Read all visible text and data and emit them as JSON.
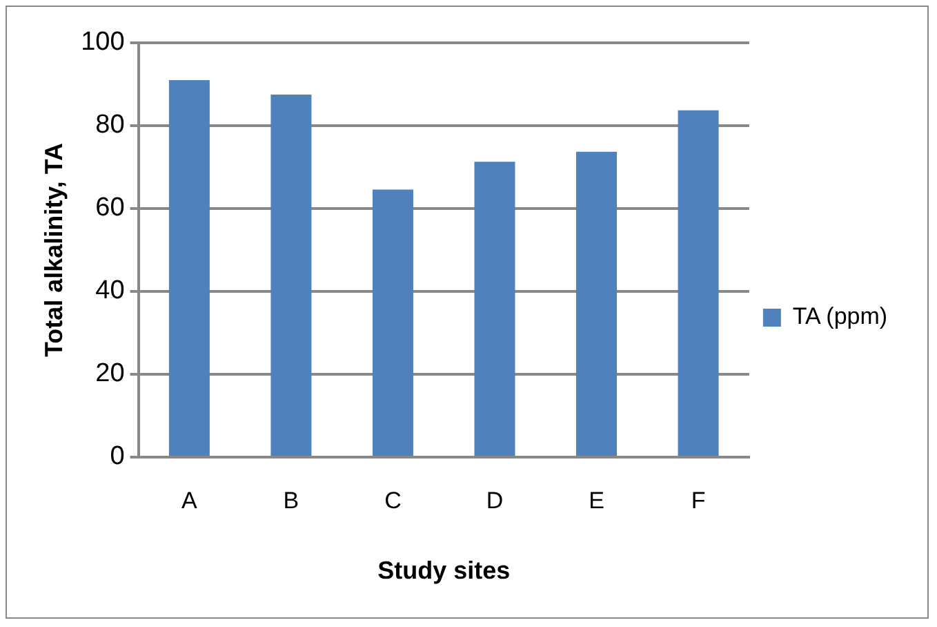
{
  "chart_data": {
    "type": "bar",
    "xlabel": "Study sites",
    "ylabel": "Total alkalinity, TA",
    "categories": [
      "A",
      "B",
      "C",
      "D",
      "E",
      "F"
    ],
    "series": [
      {
        "name": "TA (ppm)",
        "color": "#4f81bd",
        "values": [
          91,
          87.5,
          64.6,
          71.3,
          73.7,
          83.7
        ]
      }
    ],
    "ylim": [
      0,
      100
    ],
    "yticks": [
      0,
      20,
      40,
      60,
      80,
      100
    ],
    "grid": "y",
    "legend": "right"
  }
}
